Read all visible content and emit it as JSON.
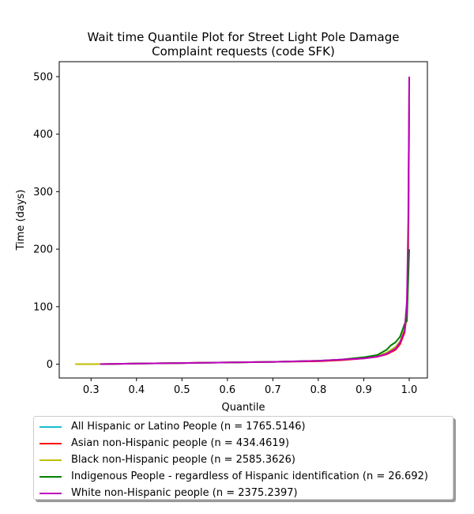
{
  "chart_data": {
    "type": "line",
    "title": "Wait time Quantile Plot for Street Light Pole Damage\nComplaint  requests (code SFK)",
    "title_lines": [
      "Wait time Quantile Plot for Street Light Pole Damage",
      "Complaint  requests (code SFK)"
    ],
    "xlabel": "Quantile",
    "ylabel": "Time (days)",
    "xlim": [
      0.23,
      1.04
    ],
    "ylim": [
      -24,
      526
    ],
    "xticks": [
      0.3,
      0.4,
      0.5,
      0.6,
      0.7,
      0.8,
      0.9,
      1.0
    ],
    "xtick_labels": [
      "0.3",
      "0.4",
      "0.5",
      "0.6",
      "0.7",
      "0.8",
      "0.9",
      "1.0"
    ],
    "yticks": [
      0,
      100,
      200,
      300,
      400,
      500
    ],
    "ytick_labels": [
      "0",
      "100",
      "200",
      "300",
      "400",
      "500"
    ],
    "grid": false,
    "legend_position": "below",
    "series": [
      {
        "name": "All Hispanic or Latino People (n = 1765.5146)",
        "color": "#17becf",
        "x": [
          0.32,
          0.4,
          0.5,
          0.6,
          0.7,
          0.8,
          0.85,
          0.9,
          0.93,
          0.95,
          0.97,
          0.98,
          0.99,
          0.995,
          0.998,
          1.0
        ],
        "y": [
          0,
          1,
          2,
          3,
          4,
          6,
          8,
          11,
          14,
          20,
          30,
          40,
          60,
          100,
          200,
          480
        ]
      },
      {
        "name": "Asian non-Hispanic people (n = 434.4619)",
        "color": "#ff0000",
        "x": [
          0.32,
          0.4,
          0.5,
          0.6,
          0.7,
          0.8,
          0.85,
          0.9,
          0.93,
          0.95,
          0.97,
          0.98,
          0.99,
          0.995,
          0.998,
          1.0
        ],
        "y": [
          0,
          1,
          2,
          3,
          4,
          5,
          7,
          10,
          13,
          17,
          25,
          35,
          55,
          90,
          180,
          450
        ]
      },
      {
        "name": "Black non-Hispanic people (n = 2585.3626)",
        "color": "#bfbf00",
        "x": [
          0.265,
          0.3,
          0.4,
          0.5,
          0.6,
          0.7,
          0.8,
          0.85,
          0.9,
          0.93,
          0.95,
          0.97,
          0.98,
          0.99,
          0.995,
          0.998,
          1.0
        ],
        "y": [
          0,
          0,
          1,
          2,
          3,
          4,
          6,
          8,
          11,
          14,
          20,
          30,
          40,
          62,
          105,
          210,
          490
        ]
      },
      {
        "name": "Indigenous People - regardless of Hispanic identification (n = 26.692)",
        "color": "#008000",
        "x": [
          0.32,
          0.4,
          0.5,
          0.6,
          0.7,
          0.8,
          0.85,
          0.9,
          0.93,
          0.95,
          0.96,
          0.97,
          0.98,
          0.99,
          0.995,
          1.0
        ],
        "y": [
          0,
          1,
          2,
          3,
          4,
          6,
          8,
          12,
          16,
          25,
          33,
          38,
          48,
          70,
          75,
          200
        ]
      },
      {
        "name": "White non-Hispanic people (n = 2375.2397)",
        "color": "#bf00bf",
        "x": [
          0.32,
          0.4,
          0.5,
          0.6,
          0.7,
          0.8,
          0.85,
          0.9,
          0.93,
          0.95,
          0.97,
          0.98,
          0.99,
          0.995,
          0.998,
          1.0
        ],
        "y": [
          0,
          1,
          2,
          3,
          4,
          6,
          8,
          10,
          13,
          18,
          27,
          38,
          58,
          110,
          250,
          500
        ]
      }
    ]
  }
}
